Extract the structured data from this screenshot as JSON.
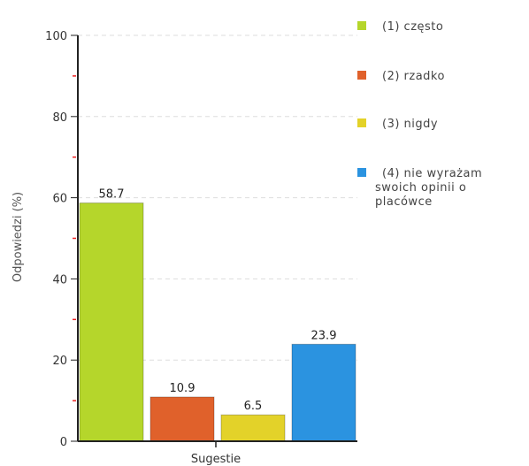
{
  "chart_data": {
    "type": "bar",
    "categories": [
      "Sugestie"
    ],
    "series": [
      {
        "name": "(1) często",
        "values": [
          58.7
        ],
        "color": "#b5d62b"
      },
      {
        "name": "(2) rzadko",
        "values": [
          10.9
        ],
        "color": "#e0612b"
      },
      {
        "name": "(3) nigdy",
        "values": [
          6.5
        ],
        "color": "#e3d229"
      },
      {
        "name": "(4) nie wyrażam swoich opinii o placówce",
        "values": [
          23.9
        ],
        "color": "#2b93e0"
      }
    ],
    "data_labels": [
      "58.7",
      "10.9",
      "6.5",
      "23.9"
    ],
    "title": "",
    "xlabel": "Sugestie",
    "ylabel": "Odpowiedzi (%)",
    "ylim": [
      0,
      100
    ],
    "yticks": [
      0,
      20,
      40,
      60,
      80,
      100
    ],
    "grid": true,
    "legend_position": "right",
    "legend_lines": [
      [
        "(1) często"
      ],
      [
        "(2) rzadko"
      ],
      [
        "(3) nigdy"
      ],
      [
        "(4) nie wyrażam",
        "swoich opinii o",
        "placówce"
      ]
    ]
  }
}
